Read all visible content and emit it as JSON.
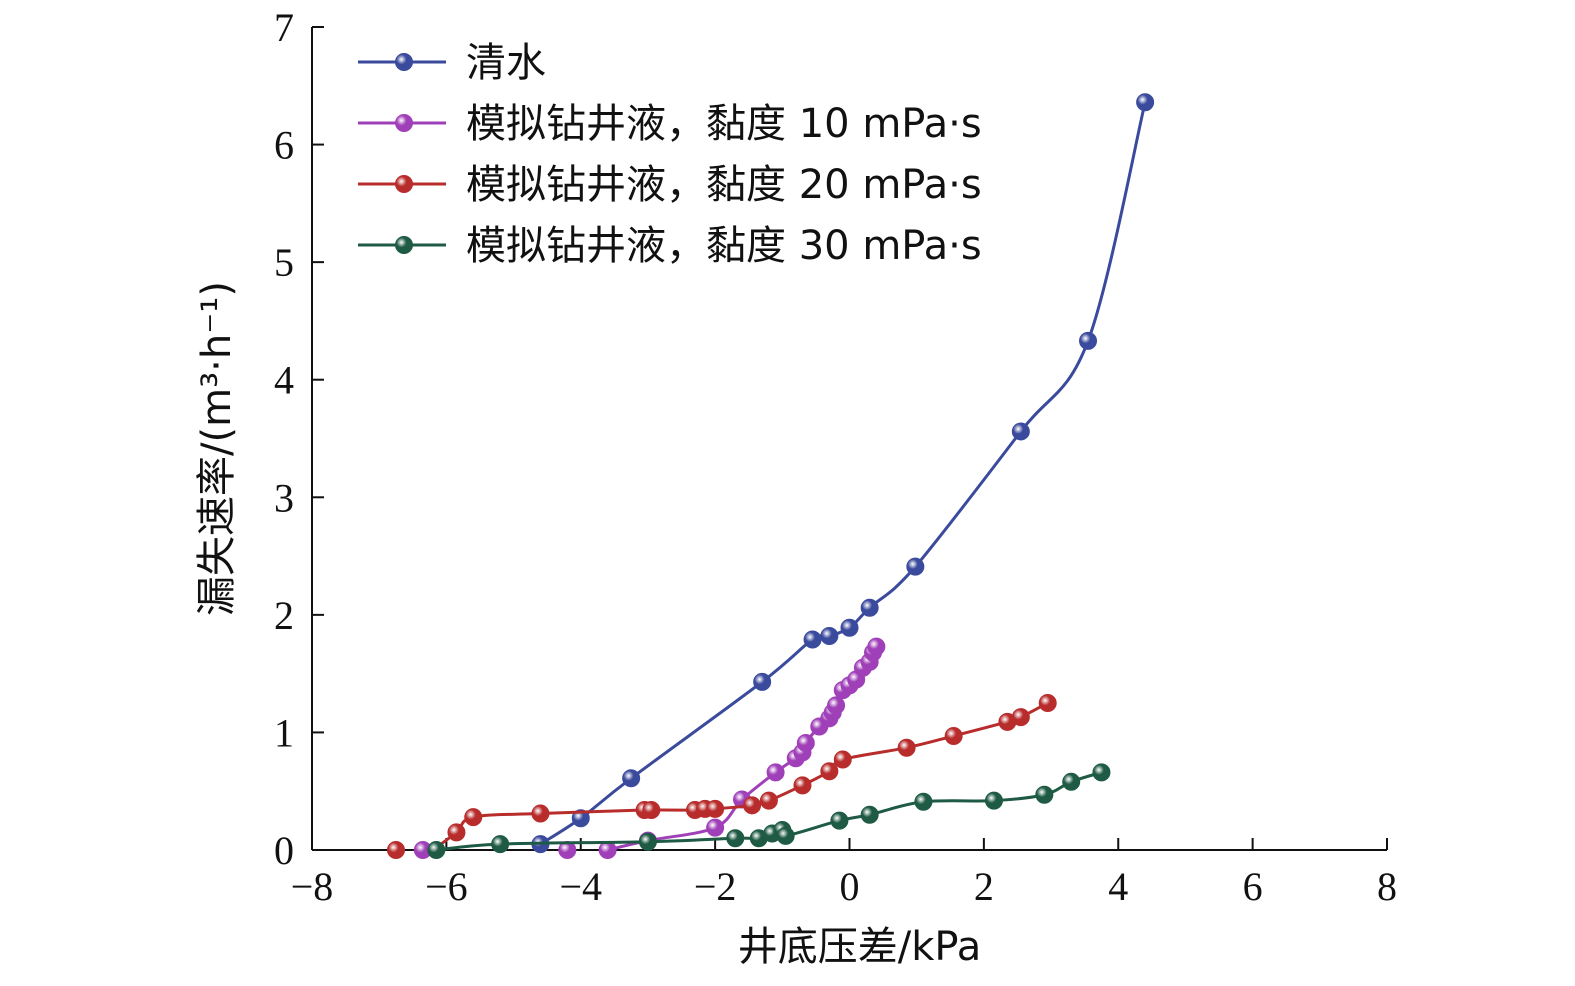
{
  "chart_data": {
    "type": "line",
    "xlabel": "井底压差/kPa",
    "ylabel": "漏失速率/(m³·h⁻¹)",
    "xlim": [
      -8,
      8
    ],
    "ylim": [
      0,
      7
    ],
    "xticks": [
      -8,
      -6,
      -4,
      -2,
      0,
      2,
      4,
      6,
      8
    ],
    "yticks": [
      0,
      1,
      2,
      3,
      4,
      5,
      6,
      7
    ],
    "xtick_labels": [
      "−8",
      "−6",
      "−4",
      "−2",
      "0",
      "2",
      "4",
      "6",
      "8"
    ],
    "ytick_labels": [
      "0",
      "1",
      "2",
      "3",
      "4",
      "5",
      "6",
      "7"
    ],
    "legend_position": "top-left",
    "series": [
      {
        "name": "清水",
        "color": "#3a4a9c",
        "x": [
          -4.6,
          -4.0,
          -3.25,
          -1.3,
          -0.55,
          -0.3,
          0.0,
          0.3,
          0.98,
          2.55,
          3.55,
          4.4
        ],
        "y": [
          0.05,
          0.27,
          0.61,
          1.43,
          1.79,
          1.82,
          1.89,
          2.06,
          2.41,
          3.56,
          4.33,
          6.36
        ]
      },
      {
        "name": "模拟钻井液，黏度 10 mPa·s",
        "color": "#a040b8",
        "x": [
          -6.35,
          -4.2,
          -3.6,
          -3.0,
          -2.0,
          -1.6,
          -1.1,
          -0.8,
          -0.7,
          -0.65,
          -0.45,
          -0.3,
          -0.25,
          -0.2,
          -0.1,
          0.0,
          0.1,
          0.2,
          0.3,
          0.35,
          0.4
        ],
        "y": [
          0.0,
          0.0,
          0.0,
          0.08,
          0.19,
          0.43,
          0.66,
          0.78,
          0.83,
          0.91,
          1.05,
          1.12,
          1.17,
          1.23,
          1.36,
          1.4,
          1.45,
          1.55,
          1.6,
          1.68,
          1.73
        ]
      },
      {
        "name": "模拟钻井液，黏度 20 mPa·s",
        "color": "#b82c2c",
        "x": [
          -6.75,
          -5.85,
          -5.6,
          -4.6,
          -3.05,
          -2.95,
          -2.3,
          -2.15,
          -2.0,
          -1.45,
          -1.2,
          -0.7,
          -0.3,
          -0.1,
          0.85,
          1.55,
          2.35,
          2.55,
          2.95
        ],
        "y": [
          0.0,
          0.15,
          0.28,
          0.31,
          0.34,
          0.34,
          0.34,
          0.35,
          0.35,
          0.38,
          0.42,
          0.55,
          0.67,
          0.77,
          0.87,
          0.97,
          1.09,
          1.13,
          1.25
        ],
        "start_x": -6.2,
        "start_y": 0.0
      },
      {
        "name": "模拟钻井液，黏度 30 mPa·s",
        "color": "#1e5a44",
        "x": [
          -6.15,
          -5.2,
          -3.0,
          -1.7,
          -1.35,
          -1.15,
          -1.0,
          -0.95,
          -0.15,
          0.3,
          1.1,
          2.15,
          2.9,
          3.3,
          3.75
        ],
        "y": [
          0.0,
          0.05,
          0.07,
          0.1,
          0.1,
          0.14,
          0.17,
          0.12,
          0.25,
          0.3,
          0.41,
          0.42,
          0.47,
          0.58,
          0.66
        ]
      }
    ]
  }
}
